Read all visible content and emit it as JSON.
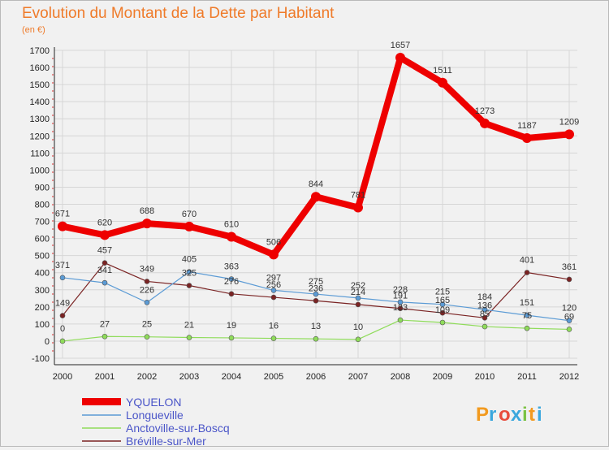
{
  "chart_data": {
    "type": "line",
    "title": "Evolution du Montant de la Dette par Habitant",
    "subtitle": "(en €)",
    "xlabel": "",
    "ylabel": "",
    "x": [
      "2000",
      "2001",
      "2002",
      "2003",
      "2004",
      "2005",
      "2006",
      "2007",
      "2008",
      "2009",
      "2010",
      "2011",
      "2012"
    ],
    "ylim": [
      -100,
      1700
    ],
    "yticks": [
      -100,
      0,
      100,
      200,
      300,
      400,
      500,
      600,
      700,
      800,
      900,
      1000,
      1100,
      1200,
      1300,
      1400,
      1500,
      1600,
      1700
    ],
    "grid": true,
    "legend": "bottom-left",
    "series": [
      {
        "name": "YQUELON",
        "color": "#ee0000",
        "values": [
          671,
          620,
          688,
          670,
          610,
          506,
          844,
          781,
          1657,
          1511,
          1273,
          1187,
          1209
        ],
        "labels": [
          "671",
          "620",
          "688",
          "670",
          "610",
          "506",
          "844",
          "781",
          "1657",
          "1511",
          "1273",
          "1187",
          "1209"
        ]
      },
      {
        "name": "Longueville",
        "color": "#5b9bd5",
        "values": [
          371,
          341,
          226,
          405,
          363,
          297,
          275,
          252,
          228,
          215,
          184,
          151,
          120
        ],
        "labels": [
          "371",
          "341",
          "226",
          "405",
          "363",
          "297",
          "275",
          "252",
          "228",
          "215",
          "184",
          "151",
          "120"
        ]
      },
      {
        "name": "Anctoville-sur-Boscq",
        "color": "#8fdc5a",
        "values": [
          0,
          27,
          25,
          21,
          19,
          16,
          13,
          10,
          123,
          109,
          85,
          75,
          69
        ],
        "labels": [
          "0",
          "27",
          "25",
          "21",
          "19",
          "16",
          "13",
          "10",
          "123",
          "109",
          "85",
          "75",
          "69"
        ]
      },
      {
        "name": "Bréville-sur-Mer",
        "color": "#7a2323",
        "values": [
          149,
          457,
          349,
          325,
          276,
          256,
          236,
          214,
          191,
          165,
          136,
          401,
          361
        ],
        "labels": [
          "149",
          "457",
          "349",
          "325",
          "276",
          "256",
          "236",
          "214",
          "191",
          "165",
          "136",
          "401",
          "361"
        ]
      }
    ]
  },
  "logo": {
    "text": "Proxiti",
    "letters": [
      "P",
      "r",
      "o",
      "x",
      "i",
      "t",
      "i"
    ],
    "colors": [
      "#f29a1f",
      "#3aa7dd",
      "#e84c3d",
      "#3aa7dd",
      "#7cc243",
      "#f29a1f",
      "#3aa7dd"
    ]
  }
}
